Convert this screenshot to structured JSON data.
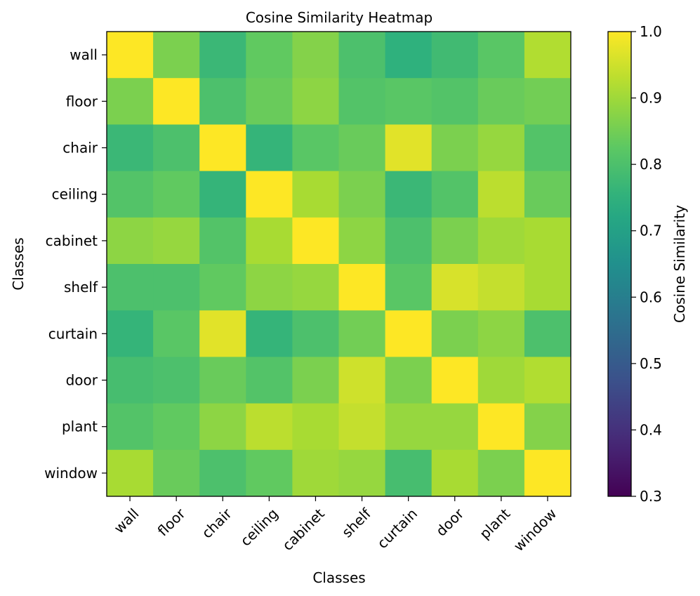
{
  "chart_data": {
    "type": "heatmap",
    "title": "Cosine Similarity Heatmap",
    "xlabel": "Classes",
    "ylabel": "Classes",
    "categories": [
      "wall",
      "floor",
      "chair",
      "ceiling",
      "cabinet",
      "shelf",
      "curtain",
      "door",
      "plant",
      "window"
    ],
    "matrix": [
      [
        1.0,
        0.86,
        0.77,
        0.83,
        0.87,
        0.8,
        0.75,
        0.78,
        0.82,
        0.92
      ],
      [
        0.86,
        1.0,
        0.8,
        0.84,
        0.88,
        0.81,
        0.82,
        0.81,
        0.84,
        0.85
      ],
      [
        0.77,
        0.8,
        1.0,
        0.76,
        0.82,
        0.84,
        0.97,
        0.86,
        0.89,
        0.81
      ],
      [
        0.81,
        0.83,
        0.76,
        1.0,
        0.91,
        0.86,
        0.77,
        0.81,
        0.93,
        0.84
      ],
      [
        0.88,
        0.89,
        0.81,
        0.91,
        1.0,
        0.88,
        0.8,
        0.86,
        0.9,
        0.91
      ],
      [
        0.8,
        0.8,
        0.83,
        0.88,
        0.89,
        1.0,
        0.82,
        0.96,
        0.94,
        0.91
      ],
      [
        0.76,
        0.82,
        0.97,
        0.76,
        0.8,
        0.85,
        1.0,
        0.86,
        0.88,
        0.8
      ],
      [
        0.79,
        0.8,
        0.84,
        0.81,
        0.86,
        0.95,
        0.86,
        1.0,
        0.9,
        0.92
      ],
      [
        0.81,
        0.83,
        0.88,
        0.93,
        0.91,
        0.94,
        0.89,
        0.89,
        1.0,
        0.87
      ],
      [
        0.91,
        0.84,
        0.8,
        0.83,
        0.9,
        0.89,
        0.79,
        0.91,
        0.86,
        1.0
      ]
    ],
    "colormap": "viridis",
    "colorbar": {
      "label": "Cosine Similarity",
      "range": [
        0.3,
        1.0
      ],
      "ticks": [
        "0.3",
        "0.4",
        "0.5",
        "0.6",
        "0.7",
        "0.8",
        "0.9",
        "1.0"
      ]
    }
  }
}
